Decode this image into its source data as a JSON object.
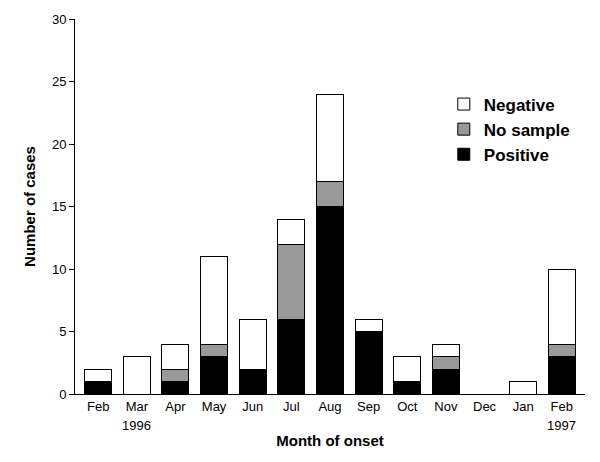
{
  "chart_data": {
    "type": "bar",
    "stacked": true,
    "x_label": "Month of onset",
    "y_label": "Number of cases",
    "categories": [
      "Feb",
      "Mar",
      "Apr",
      "May",
      "Jun",
      "Jul",
      "Aug",
      "Sep",
      "Oct",
      "Nov",
      "Dec",
      "Jan",
      "Feb"
    ],
    "series": [
      {
        "name": "Positive",
        "color": "#000000",
        "values": [
          1,
          0,
          1,
          3,
          2,
          6,
          15,
          5,
          1,
          2,
          0,
          0,
          3
        ]
      },
      {
        "name": "No sample",
        "color": "#999999",
        "values": [
          0,
          0,
          1,
          1,
          0,
          6,
          2,
          0,
          0,
          1,
          0,
          0,
          1
        ]
      },
      {
        "name": "Negative",
        "color": "#ffffff",
        "values": [
          1,
          3,
          2,
          7,
          4,
          2,
          7,
          1,
          2,
          1,
          0,
          1,
          6
        ]
      }
    ],
    "annotations": [
      {
        "text": "1996",
        "x": 1
      },
      {
        "text": "1997",
        "x": 12
      }
    ],
    "ylim": [
      0,
      30
    ],
    "yticks": [
      0,
      5,
      10,
      15,
      20,
      25,
      30
    ],
    "grid": false,
    "legend": "upper right"
  }
}
